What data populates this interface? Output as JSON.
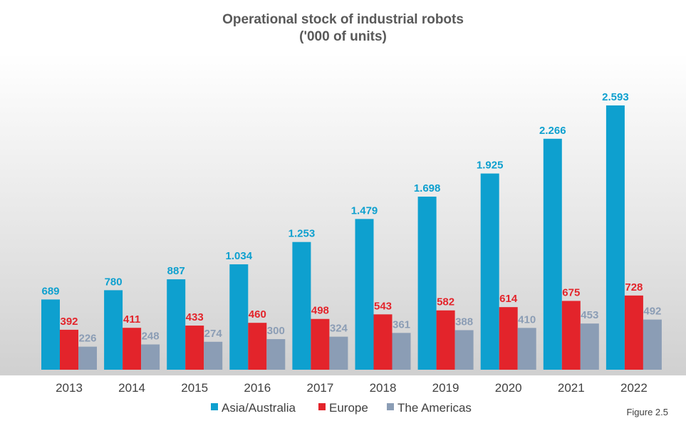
{
  "chart_data": {
    "type": "bar",
    "title": "Operational stock of industrial robots",
    "subtitle": "('000 of units)",
    "categories": [
      "2013",
      "2014",
      "2015",
      "2016",
      "2017",
      "2018",
      "2019",
      "2020",
      "2021",
      "2022"
    ],
    "series": [
      {
        "name": "Asia/Australia",
        "color": "#0ea0cf",
        "values": [
          689,
          780,
          887,
          1034,
          1253,
          1479,
          1698,
          1925,
          2266,
          2593
        ],
        "labels": [
          "689",
          "780",
          "887",
          "1.034",
          "1.253",
          "1.479",
          "1.698",
          "1.925",
          "2.266",
          "2.593"
        ]
      },
      {
        "name": "Europe",
        "color": "#e3242b",
        "values": [
          392,
          411,
          433,
          460,
          498,
          543,
          582,
          614,
          675,
          728
        ],
        "labels": [
          "392",
          "411",
          "433",
          "460",
          "498",
          "543",
          "582",
          "614",
          "675",
          "728"
        ]
      },
      {
        "name": "The Americas",
        "color": "#8b9db5",
        "values": [
          226,
          248,
          274,
          300,
          324,
          361,
          388,
          410,
          453,
          492
        ],
        "labels": [
          "226",
          "248",
          "274",
          "300",
          "324",
          "361",
          "388",
          "410",
          "453",
          "492"
        ]
      }
    ],
    "ylim": [
      0,
      2593
    ],
    "legend_position": "bottom",
    "grid": false
  },
  "figure_label": "Figure 2.5"
}
